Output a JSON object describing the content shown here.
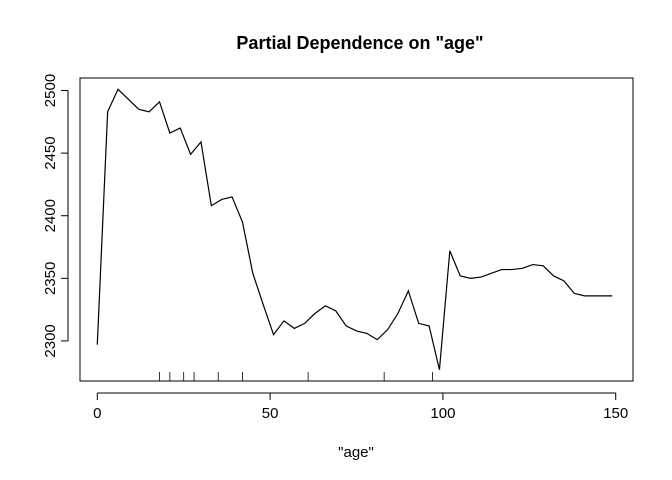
{
  "chart_data": {
    "type": "line",
    "title": "Partial Dependence on \"age\"",
    "xlabel": "\"age\"",
    "ylabel": "",
    "xlim": [
      -5,
      155
    ],
    "ylim": [
      2268,
      2510
    ],
    "x_ticks": [
      0,
      50,
      100,
      150
    ],
    "y_ticks": [
      2300,
      2350,
      2400,
      2450,
      2500
    ],
    "grid": false,
    "x": [
      0,
      3,
      6,
      9,
      12,
      15,
      18,
      21,
      24,
      27,
      30,
      33,
      36,
      39,
      42,
      45,
      48,
      51,
      54,
      57,
      60,
      63,
      66,
      69,
      72,
      75,
      78,
      81,
      84,
      87,
      90,
      93,
      96,
      99,
      102,
      105,
      108,
      111,
      114,
      117,
      120,
      123,
      126,
      129,
      132,
      135,
      138,
      141,
      144,
      147,
      149
    ],
    "series": [
      {
        "values": [
          2297,
          2483,
          2501,
          2493,
          2485,
          2483,
          2491,
          2466,
          2470,
          2449,
          2459,
          2408,
          2413,
          2415,
          2395,
          2354,
          2329,
          2305,
          2316,
          2310,
          2314,
          2322,
          2328,
          2324,
          2312,
          2308,
          2306,
          2301,
          2309,
          2322,
          2340,
          2314,
          2312,
          2277,
          2372,
          2352,
          2350,
          2351,
          2354,
          2357,
          2357,
          2358,
          2361,
          2360,
          2352,
          2348,
          2338,
          2336,
          2336,
          2336,
          2336
        ]
      }
    ],
    "rug": [
      18,
      21,
      25,
      28,
      35,
      42,
      61,
      83,
      97
    ]
  }
}
